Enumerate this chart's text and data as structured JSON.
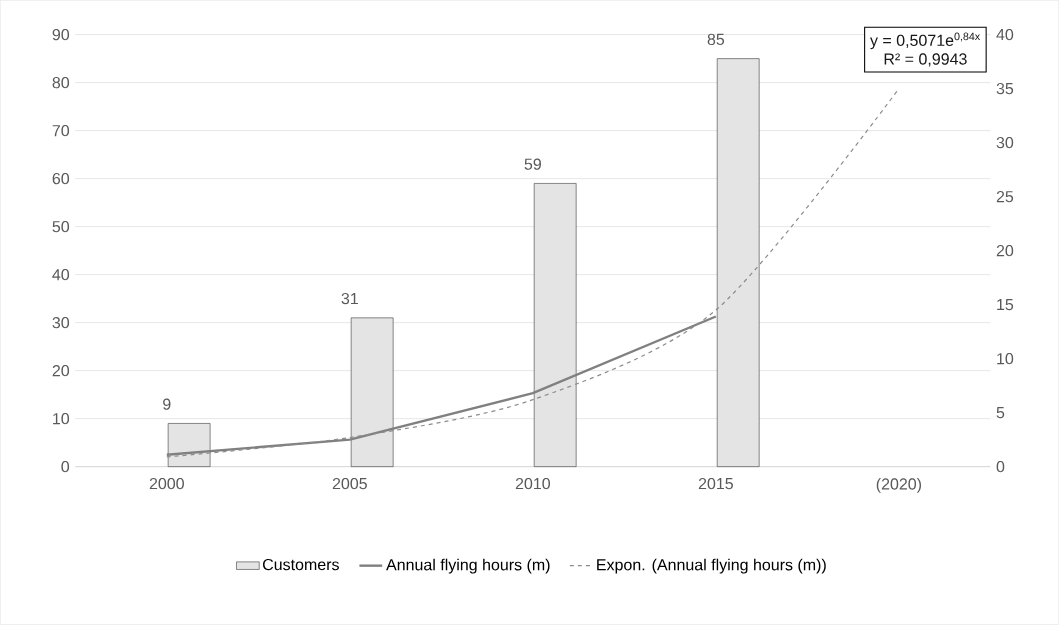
{
  "chart_data": {
    "type": "bar",
    "categories": [
      "2000",
      "2005",
      "2010",
      "2015",
      "(2020)"
    ],
    "series": [
      {
        "name": "Customers",
        "color": "#e4e4e4",
        "values": [
          9,
          31,
          59,
          85,
          null
        ],
        "value_labels": [
          "9",
          "31",
          "59",
          "85",
          null
        ]
      },
      {
        "name": "Annual flying hours (m)",
        "type": "line",
        "axis": "y2",
        "color": "#808080",
        "values": [
          1.1,
          2.5,
          6.8,
          13.9,
          null
        ]
      },
      {
        "name": "Expon. (Annual flying hours (m))",
        "type": "line",
        "axis": "y2",
        "color": "#8c8c8c",
        "line_style": "dashed",
        "values": [
          0.9,
          2.7,
          6.2,
          14.5,
          35
        ]
      }
    ],
    "ylim": [
      0,
      90
    ],
    "yticks": [
      0,
      10,
      20,
      30,
      40,
      50,
      60,
      70,
      80,
      90
    ],
    "y2lim": [
      0,
      40
    ],
    "y2ticks": [
      0,
      5,
      10,
      15,
      20,
      25,
      30,
      35,
      40
    ],
    "annotations": [
      "y = 0,5071e$^{0,84x}$",
      "R² = 0,9943"
    ],
    "grid": "y",
    "legend": "bottom"
  }
}
